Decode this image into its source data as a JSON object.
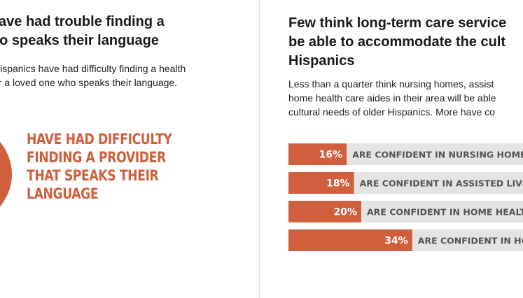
{
  "left": {
    "headline": [
      "cs have had trouble finding a",
      "r who speaks their language"
    ],
    "body": [
      "Hispanics have had difficulty finding a health",
      "or a loved one who speaks their language."
    ],
    "highlight": [
      "HAVE HAD DIFFICULTY",
      "FINDING A PROVIDER",
      "THAT SPEAKS THEIR",
      "LANGUAGE"
    ]
  },
  "right": {
    "headline": [
      "Few think long-term care service",
      "be able to accommodate the cult",
      "Hispanics"
    ],
    "body": [
      "Less than a quarter think nursing homes, assist",
      "home health care aides in their area will be able",
      "cultural needs of older Hispanics. More have co"
    ]
  },
  "colors": {
    "accent": "#d0603d",
    "track": "#e4e4e4"
  },
  "chart_data": {
    "type": "bar",
    "orientation": "horizontal",
    "categories": [
      "ARE CONFIDENT IN NURSING HOMES",
      "ARE CONFIDENT IN ASSISTED LIVING COMM",
      "ARE CONFIDENT IN HOME HEALTH AIDES",
      "ARE CONFIDENT IN HOSPITA"
    ],
    "values": [
      16,
      18,
      20,
      34
    ],
    "value_labels": [
      "16%",
      "18%",
      "20%",
      "34%"
    ],
    "xlim": [
      0,
      100
    ],
    "grid": false,
    "legend": "none"
  }
}
